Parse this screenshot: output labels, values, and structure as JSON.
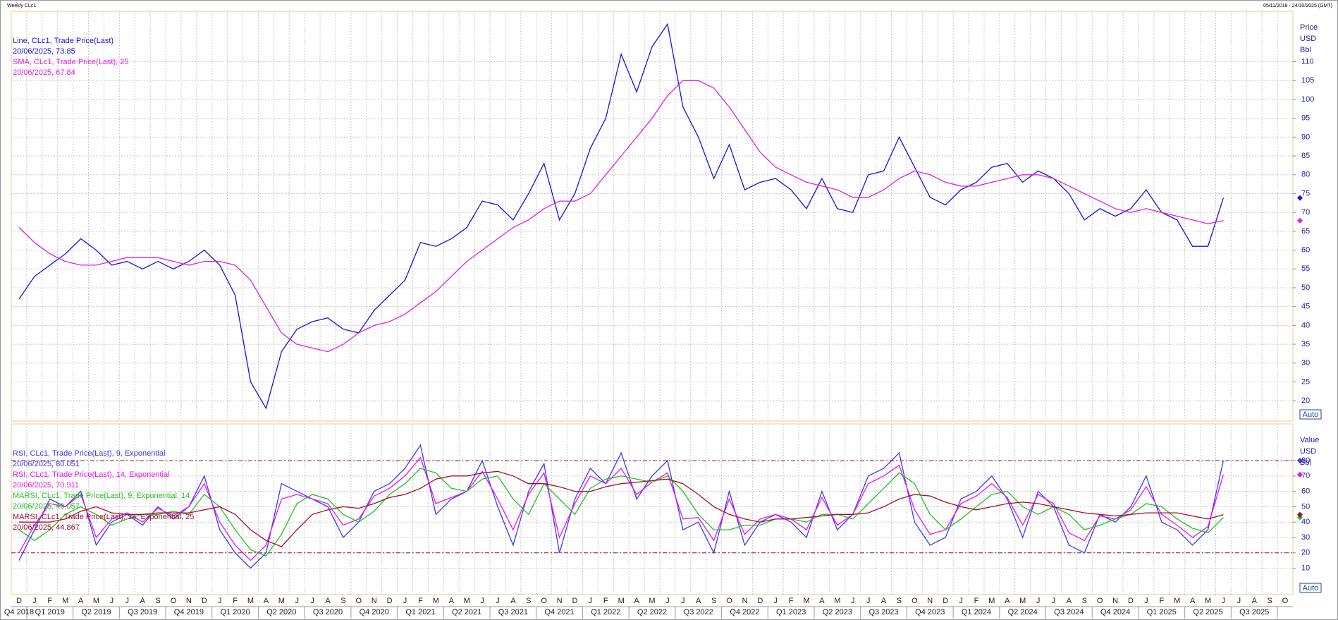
{
  "header": {
    "title": "Weekly CLc1",
    "range": "05/11/2018 - 24/10/2025 (GMT)"
  },
  "chart_data": [
    {
      "type": "line",
      "xlim": [
        "2018-12",
        "2025-10"
      ],
      "ylim": [
        14.6,
        123.4
      ],
      "yticks": [
        20,
        25,
        30,
        35,
        40,
        45,
        50,
        55,
        60,
        65,
        70,
        75,
        80,
        85,
        90,
        95,
        100,
        105,
        110
      ],
      "grid": true,
      "axis_title": [
        "Price",
        "USD",
        "Bbl"
      ],
      "scale_button": "Auto",
      "x": [
        "2018-12",
        "2019-01",
        "2019-02",
        "2019-03",
        "2019-04",
        "2019-05",
        "2019-06",
        "2019-07",
        "2019-08",
        "2019-09",
        "2019-10",
        "2019-11",
        "2019-12",
        "2020-01",
        "2020-02",
        "2020-03",
        "2020-04",
        "2020-05",
        "2020-06",
        "2020-07",
        "2020-08",
        "2020-09",
        "2020-10",
        "2020-11",
        "2020-12",
        "2021-01",
        "2021-02",
        "2021-03",
        "2021-04",
        "2021-05",
        "2021-06",
        "2021-07",
        "2021-08",
        "2021-09",
        "2021-10",
        "2021-11",
        "2021-12",
        "2022-01",
        "2022-02",
        "2022-03",
        "2022-04",
        "2022-05",
        "2022-06",
        "2022-07",
        "2022-08",
        "2022-09",
        "2022-10",
        "2022-11",
        "2022-12",
        "2023-01",
        "2023-02",
        "2023-03",
        "2023-04",
        "2023-05",
        "2023-06",
        "2023-07",
        "2023-08",
        "2023-09",
        "2023-10",
        "2023-11",
        "2023-12",
        "2024-01",
        "2024-02",
        "2024-03",
        "2024-04",
        "2024-05",
        "2024-06",
        "2024-07",
        "2024-08",
        "2024-09",
        "2024-10",
        "2024-11",
        "2024-12",
        "2025-01",
        "2025-02",
        "2025-03",
        "2025-04",
        "2025-05",
        "2025-06"
      ],
      "series": [
        {
          "name": "Line, CLc1, Trade Price(Last)",
          "legend_value": "20/06/2025, 73.85",
          "color": "#1414d8",
          "values": [
            47,
            53,
            56,
            59,
            63,
            60,
            56,
            57,
            55,
            57,
            55,
            57,
            60,
            56,
            48,
            25,
            18,
            33,
            39,
            41,
            42,
            39,
            38,
            44,
            48,
            52,
            62,
            61,
            63,
            66,
            73,
            72,
            68,
            75,
            83,
            68,
            75,
            87,
            95,
            112,
            102,
            114,
            120,
            98,
            90,
            79,
            88,
            76,
            78,
            79,
            76,
            71,
            79,
            71,
            70,
            80,
            81,
            90,
            82,
            74,
            72,
            76,
            78,
            82,
            83,
            78,
            81,
            79,
            75,
            68,
            71,
            69,
            71,
            76,
            70,
            68,
            61,
            61,
            73.85
          ]
        },
        {
          "name": "SMA, CLc1, Trade Price(Last),  25",
          "legend_value": "20/06/2025, 67.84",
          "color": "#e020e0",
          "values": [
            66,
            62,
            59,
            57,
            56,
            56,
            57,
            58,
            58,
            58,
            57,
            56,
            57,
            57,
            56,
            52,
            45,
            38,
            35,
            34,
            33,
            35,
            38,
            40,
            41,
            43,
            46,
            49,
            53,
            57,
            60,
            63,
            66,
            68,
            71,
            73,
            73,
            75,
            80,
            85,
            90,
            95,
            101,
            105,
            105,
            103,
            98,
            92,
            86,
            82,
            80,
            78,
            77,
            76,
            74,
            74,
            76,
            79,
            81,
            80,
            78,
            77,
            77,
            78,
            79,
            80,
            80,
            79,
            77,
            75,
            73,
            71,
            70,
            71,
            70,
            69,
            68,
            67,
            67.84
          ]
        }
      ]
    },
    {
      "type": "line",
      "xlim": [
        "2018-12",
        "2025-10"
      ],
      "ylim": [
        -7.2,
        103.9
      ],
      "yticks": [
        10,
        20,
        30,
        40,
        50,
        60,
        70,
        80
      ],
      "grid": true,
      "hlines": [
        80,
        20
      ],
      "axis_title": [
        "Value",
        "USD",
        "Bbl"
      ],
      "scale_button": "Auto",
      "x_month_labels": [
        "D",
        "J",
        "F",
        "M",
        "A",
        "M",
        "J",
        "J",
        "A",
        "S",
        "O",
        "N",
        "D",
        "J",
        "F",
        "M",
        "A",
        "M",
        "J",
        "J",
        "A",
        "S",
        "O",
        "N",
        "D",
        "J",
        "F",
        "M",
        "A",
        "M",
        "J",
        "J",
        "A",
        "S",
        "O",
        "N",
        "D",
        "J",
        "F",
        "M",
        "A",
        "M",
        "J",
        "J",
        "A",
        "S",
        "O",
        "N",
        "D",
        "J",
        "F",
        "M",
        "A",
        "M",
        "J",
        "J",
        "A",
        "S",
        "O",
        "N",
        "D",
        "J",
        "F",
        "M",
        "A",
        "M",
        "J",
        "J",
        "A",
        "S",
        "O",
        "N",
        "D",
        "J",
        "F",
        "M",
        "A",
        "M",
        "J",
        "J",
        "A",
        "S",
        "O"
      ],
      "x_quarter_labels": [
        "Q4 2018",
        "Q1 2019",
        "Q2 2019",
        "Q3 2019",
        "Q4 2019",
        "Q1 2020",
        "Q2 2020",
        "Q3 2020",
        "Q4 2020",
        "Q1 2021",
        "Q2 2021",
        "Q3 2021",
        "Q4 2021",
        "Q1 2022",
        "Q2 2022",
        "Q3 2022",
        "Q4 2022",
        "Q1 2023",
        "Q2 2023",
        "Q3 2023",
        "Q4 2023",
        "Q1 2024",
        "Q2 2024",
        "Q3 2024",
        "Q4 2024",
        "Q1 2025",
        "Q2 2025",
        "Q3 2025"
      ],
      "x": [
        "2018-12",
        "2019-01",
        "2019-02",
        "2019-03",
        "2019-04",
        "2019-05",
        "2019-06",
        "2019-07",
        "2019-08",
        "2019-09",
        "2019-10",
        "2019-11",
        "2019-12",
        "2020-01",
        "2020-02",
        "2020-03",
        "2020-04",
        "2020-05",
        "2020-06",
        "2020-07",
        "2020-08",
        "2020-09",
        "2020-10",
        "2020-11",
        "2020-12",
        "2021-01",
        "2021-02",
        "2021-03",
        "2021-04",
        "2021-05",
        "2021-06",
        "2021-07",
        "2021-08",
        "2021-09",
        "2021-10",
        "2021-11",
        "2021-12",
        "2022-01",
        "2022-02",
        "2022-03",
        "2022-04",
        "2022-05",
        "2022-06",
        "2022-07",
        "2022-08",
        "2022-09",
        "2022-10",
        "2022-11",
        "2022-12",
        "2023-01",
        "2023-02",
        "2023-03",
        "2023-04",
        "2023-05",
        "2023-06",
        "2023-07",
        "2023-08",
        "2023-09",
        "2023-10",
        "2023-11",
        "2023-12",
        "2024-01",
        "2024-02",
        "2024-03",
        "2024-04",
        "2024-05",
        "2024-06",
        "2024-07",
        "2024-08",
        "2024-09",
        "2024-10",
        "2024-11",
        "2024-12",
        "2025-01",
        "2025-02",
        "2025-03",
        "2025-04",
        "2025-05",
        "2025-06"
      ],
      "series": [
        {
          "name": "RSI, CLc1, Trade Price(Last),  9, Exponential",
          "legend_value": "20/06/2025, 80.051",
          "color": "#3a3af0",
          "values": [
            15,
            35,
            55,
            50,
            60,
            25,
            40,
            45,
            38,
            50,
            42,
            50,
            70,
            35,
            20,
            10,
            20,
            65,
            60,
            55,
            50,
            30,
            40,
            60,
            65,
            75,
            90,
            45,
            55,
            60,
            80,
            50,
            25,
            60,
            78,
            20,
            55,
            75,
            65,
            85,
            55,
            70,
            80,
            35,
            40,
            20,
            60,
            25,
            40,
            45,
            40,
            30,
            60,
            35,
            45,
            70,
            75,
            85,
            40,
            25,
            30,
            55,
            60,
            70,
            55,
            30,
            60,
            50,
            25,
            20,
            45,
            40,
            50,
            70,
            40,
            35,
            25,
            35,
            80.051
          ]
        },
        {
          "name": "RSI, CLc1, Trade Price(Last),  14, Exponential",
          "legend_value": "20/06/2025, 70.911",
          "color": "#f010f0",
          "values": [
            20,
            38,
            52,
            50,
            58,
            30,
            42,
            46,
            40,
            49,
            44,
            50,
            65,
            40,
            25,
            15,
            25,
            55,
            58,
            55,
            52,
            38,
            42,
            57,
            62,
            70,
            82,
            52,
            56,
            60,
            73,
            55,
            35,
            58,
            72,
            30,
            52,
            70,
            65,
            75,
            58,
            66,
            72,
            42,
            43,
            28,
            55,
            32,
            42,
            45,
            42,
            35,
            56,
            38,
            45,
            65,
            70,
            77,
            48,
            32,
            35,
            52,
            57,
            65,
            56,
            38,
            58,
            52,
            33,
            28,
            44,
            42,
            48,
            63,
            45,
            38,
            30,
            37,
            70.911
          ]
        },
        {
          "name": "MARSI, CLc1, Trade Price(Last),  9, Exponential, 14",
          "legend_value": "20/06/2025, 43.057",
          "color": "#22c022",
          "values": [
            35,
            28,
            35,
            45,
            50,
            45,
            38,
            42,
            45,
            45,
            47,
            45,
            58,
            50,
            35,
            22,
            18,
            32,
            52,
            58,
            55,
            45,
            40,
            47,
            58,
            65,
            75,
            72,
            62,
            60,
            68,
            70,
            55,
            45,
            65,
            55,
            45,
            62,
            68,
            70,
            68,
            66,
            70,
            60,
            45,
            35,
            35,
            38,
            38,
            42,
            42,
            40,
            45,
            45,
            42,
            52,
            62,
            72,
            65,
            45,
            35,
            42,
            50,
            58,
            60,
            50,
            45,
            50,
            45,
            35,
            38,
            42,
            45,
            52,
            50,
            42,
            36,
            33,
            43.057
          ]
        },
        {
          "name": "MARSI, CLc1, Trade Price(Last),  14, Exponential, 25",
          "legend_value": "20/06/2025, 44.867",
          "color": "#a0102a",
          "values": [
            40,
            40,
            40,
            42,
            47,
            50,
            46,
            45,
            45,
            46,
            46,
            46,
            48,
            50,
            45,
            35,
            28,
            24,
            35,
            45,
            48,
            50,
            49,
            52,
            56,
            58,
            62,
            68,
            70,
            70,
            72,
            73,
            70,
            65,
            65,
            63,
            60,
            60,
            63,
            65,
            66,
            67,
            68,
            65,
            58,
            50,
            45,
            42,
            40,
            42,
            42,
            43,
            44,
            45,
            45,
            46,
            50,
            55,
            58,
            57,
            53,
            50,
            48,
            50,
            52,
            53,
            52,
            50,
            48,
            46,
            45,
            44,
            45,
            46,
            46,
            46,
            44,
            42,
            44.867
          ]
        }
      ]
    }
  ]
}
